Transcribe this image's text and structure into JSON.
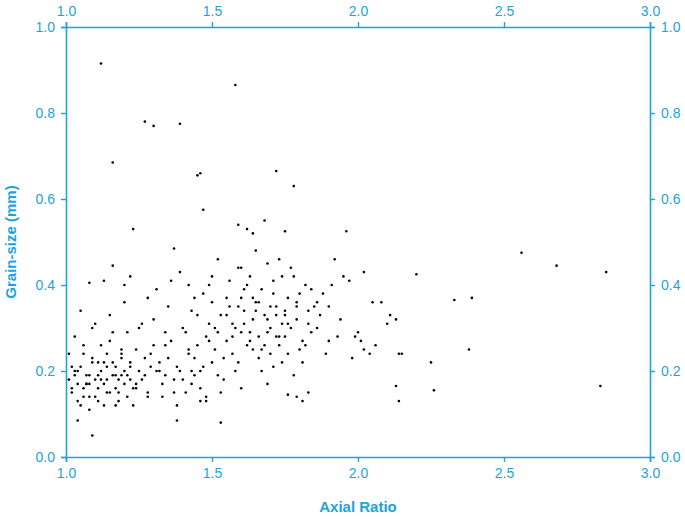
{
  "chart_data": {
    "type": "scatter",
    "xlabel": "Axial Ratio",
    "ylabel": "Grain-size (mm)",
    "color": "#000000",
    "marker": "circle",
    "xlim": [
      1.0,
      3.0
    ],
    "ylim": [
      0.0,
      1.0
    ],
    "xticks": [
      {
        "value": 1.0,
        "label": "1.0"
      },
      1.5,
      {
        "value": 2.0,
        "label": "2.0"
      },
      2.5,
      {
        "value": 3.0,
        "label": "3.0"
      }
    ],
    "yticks": [
      {
        "value": 0.0,
        "label": "0.0"
      },
      0.2,
      0.4,
      0.6,
      0.8,
      {
        "value": 1.0,
        "label": "1.0"
      }
    ],
    "x": [
      1.12,
      1.58,
      1.27,
      1.3,
      1.39,
      1.16,
      1.45,
      1.46,
      1.72,
      1.78,
      1.47,
      1.23,
      1.96,
      2.02,
      2.2,
      2.56,
      2.68,
      2.85,
      2.33,
      2.39,
      2.38,
      2.83,
      2.25,
      2.26,
      2.13,
      2.14,
      2.14,
      2.15,
      2.13,
      2.08,
      2.05,
      2.1,
      2.11,
      2.01,
      2.02,
      2.04,
      2.06,
      1.98,
      1.99,
      1.09,
      1.04,
      1.38,
      1.53,
      1.08,
      1.13,
      1.16,
      1.2,
      1.22,
      1.37,
      1.59,
      1.62,
      1.64,
      1.68,
      1.75,
      1.79,
      1.81,
      1.83,
      1.76,
      1.92,
      1.95,
      1.01,
      1.02,
      1.03,
      1.04,
      1.05,
      1.06,
      1.07,
      1.08,
      1.09,
      1.1,
      1.11,
      1.12,
      1.13,
      1.14,
      1.15,
      1.16,
      1.17,
      1.18,
      1.19,
      1.2,
      1.02,
      1.04,
      1.06,
      1.08,
      1.1,
      1.12,
      1.14,
      1.16,
      1.18,
      1.2,
      1.21,
      1.22,
      1.23,
      1.24,
      1.25,
      1.26,
      1.27,
      1.28,
      1.29,
      1.3,
      1.03,
      1.05,
      1.07,
      1.09,
      1.11,
      1.13,
      1.15,
      1.17,
      1.19,
      1.21,
      1.01,
      1.06,
      1.11,
      1.16,
      1.21,
      1.26,
      1.31,
      1.33,
      1.35,
      1.37,
      1.32,
      1.34,
      1.36,
      1.38,
      1.4,
      1.42,
      1.44,
      1.46,
      1.48,
      1.5,
      1.05,
      1.1,
      1.15,
      1.2,
      1.25,
      1.3,
      1.35,
      1.4,
      1.45,
      1.5,
      1.08,
      1.13,
      1.18,
      1.23,
      1.28,
      1.33,
      1.38,
      1.43,
      1.48,
      1.53,
      1.04,
      1.09,
      1.14,
      1.19,
      1.24,
      1.29,
      1.34,
      1.39,
      1.44,
      1.49,
      1.07,
      1.12,
      1.17,
      1.22,
      1.27,
      1.32,
      1.37,
      1.42,
      1.47,
      1.52,
      1.02,
      1.03,
      1.06,
      1.08,
      1.11,
      1.14,
      1.17,
      1.19,
      1.22,
      1.24,
      1.41,
      1.43,
      1.45,
      1.47,
      1.49,
      1.51,
      1.53,
      1.55,
      1.57,
      1.59,
      1.42,
      1.46,
      1.5,
      1.54,
      1.58,
      1.52,
      1.56,
      1.44,
      1.48,
      1.6,
      1.55,
      1.57,
      1.59,
      1.61,
      1.63,
      1.65,
      1.67,
      1.69,
      1.71,
      1.73,
      1.75,
      1.77,
      1.79,
      1.81,
      1.83,
      1.85,
      1.62,
      1.66,
      1.7,
      1.74,
      1.56,
      1.6,
      1.64,
      1.68,
      1.72,
      1.76,
      1.8,
      1.84,
      1.58,
      1.63,
      1.67,
      1.71,
      1.75,
      1.79,
      1.82,
      1.61,
      1.65,
      1.69,
      1.73,
      1.78,
      1.54,
      1.59,
      1.64,
      1.69,
      1.74,
      1.78,
      1.83,
      1.86,
      1.88,
      1.9,
      1.57,
      1.62,
      1.66,
      1.7,
      1.72,
      1.76,
      1.8,
      1.84,
      1.87,
      1.93,
      1.6,
      1.63,
      1.67,
      1.71,
      1.74,
      1.77,
      1.81,
      1.65,
      1.69,
      1.73,
      1.51,
      1.55,
      1.6,
      1.64,
      1.68,
      1.72,
      1.76,
      1.79,
      1.82,
      1.86,
      1.28,
      1.31,
      1.34,
      1.36,
      1.39,
      1.41,
      1.43,
      1.46,
      1.49,
      1.52,
      1.9,
      1.94,
      1.97,
      2.0,
      1.89,
      1.91,
      1.61,
      1.66,
      1.7,
      1.75
    ],
    "values": [
      0.915,
      0.865,
      0.78,
      0.77,
      0.775,
      0.685,
      0.655,
      0.66,
      0.665,
      0.63,
      0.575,
      0.53,
      0.525,
      0.43,
      0.425,
      0.475,
      0.445,
      0.43,
      0.365,
      0.37,
      0.25,
      0.165,
      0.22,
      0.155,
      0.165,
      0.13,
      0.24,
      0.24,
      0.32,
      0.36,
      0.36,
      0.31,
      0.33,
      0.27,
      0.25,
      0.24,
      0.26,
      0.23,
      0.28,
      0.05,
      0.085,
      0.085,
      0.08,
      0.405,
      0.41,
      0.445,
      0.4,
      0.42,
      0.485,
      0.54,
      0.53,
      0.52,
      0.55,
      0.525,
      0.14,
      0.13,
      0.15,
      0.145,
      0.46,
      0.42,
      0.18,
      0.15,
      0.2,
      0.17,
      0.21,
      0.16,
      0.19,
      0.14,
      0.22,
      0.18,
      0.16,
      0.2,
      0.17,
      0.24,
      0.15,
      0.19,
      0.21,
      0.18,
      0.23,
      0.17,
      0.21,
      0.13,
      0.24,
      0.19,
      0.14,
      0.26,
      0.18,
      0.22,
      0.15,
      0.2,
      0.19,
      0.22,
      0.16,
      0.25,
      0.2,
      0.18,
      0.23,
      0.14,
      0.21,
      0.26,
      0.28,
      0.12,
      0.17,
      0.3,
      0.13,
      0.22,
      0.27,
      0.12,
      0.19,
      0.29,
      0.24,
      0.26,
      0.19,
      0.29,
      0.14,
      0.31,
      0.2,
      0.17,
      0.23,
      0.15,
      0.22,
      0.19,
      0.27,
      0.21,
      0.18,
      0.25,
      0.23,
      0.16,
      0.28,
      0.22,
      0.34,
      0.31,
      0.33,
      0.36,
      0.3,
      0.32,
      0.35,
      0.3,
      0.33,
      0.36,
      0.11,
      0.12,
      0.13,
      0.12,
      0.15,
      0.14,
      0.12,
      0.17,
      0.13,
      0.15,
      0.2,
      0.23,
      0.21,
      0.25,
      0.17,
      0.24,
      0.26,
      0.2,
      0.19,
      0.27,
      0.17,
      0.18,
      0.16,
      0.21,
      0.19,
      0.2,
      0.18,
      0.24,
      0.21,
      0.29,
      0.16,
      0.19,
      0.14,
      0.17,
      0.22,
      0.15,
      0.19,
      0.24,
      0.18,
      0.16,
      0.29,
      0.34,
      0.26,
      0.38,
      0.31,
      0.25,
      0.33,
      0.37,
      0.28,
      0.35,
      0.4,
      0.2,
      0.42,
      0.23,
      0.3,
      0.19,
      0.41,
      0.37,
      0.14,
      0.44,
      0.27,
      0.31,
      0.22,
      0.34,
      0.29,
      0.36,
      0.25,
      0.32,
      0.38,
      0.28,
      0.33,
      0.3,
      0.36,
      0.27,
      0.31,
      0.35,
      0.4,
      0.23,
      0.3,
      0.42,
      0.35,
      0.29,
      0.32,
      0.26,
      0.35,
      0.24,
      0.38,
      0.29,
      0.2,
      0.27,
      0.39,
      0.21,
      0.28,
      0.32,
      0.4,
      0.31,
      0.34,
      0.45,
      0.26,
      0.19,
      0.18,
      0.44,
      0.37,
      0.29,
      0.31,
      0.42,
      0.34,
      0.3,
      0.38,
      0.27,
      0.24,
      0.26,
      0.28,
      0.35,
      0.33,
      0.37,
      0.25,
      0.39,
      0.33,
      0.28,
      0.16,
      0.42,
      0.2,
      0.41,
      0.22,
      0.44,
      0.22,
      0.48,
      0.17,
      0.46,
      0.3,
      0.33,
      0.37,
      0.25,
      0.33,
      0.28,
      0.31,
      0.35,
      0.26,
      0.36,
      0.37,
      0.39,
      0.29,
      0.41,
      0.43,
      0.15,
      0.2,
      0.13,
      0.4,
      0.46,
      0.35,
      0.32,
      0.41,
      0.29,
      0.24,
      0.4,
      0.39,
      0.36,
      0.24,
      0.34
    ]
  }
}
